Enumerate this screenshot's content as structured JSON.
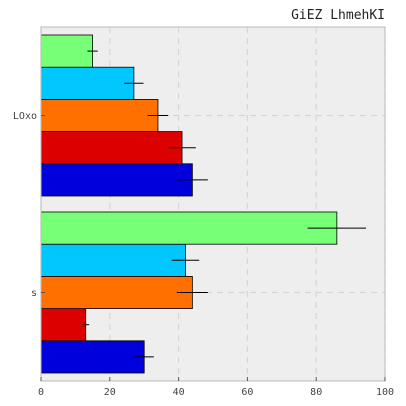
{
  "chart_data": {
    "type": "bar",
    "orientation": "horizontal",
    "title": "GiEZ LhmehKI",
    "xlabel": "",
    "ylabel": "",
    "xlim": [
      0,
      100
    ],
    "x_ticks": [
      "0",
      "20",
      "40",
      "60",
      "80",
      "100"
    ],
    "categories": [
      "LOxo",
      "s"
    ],
    "grid": true,
    "legend": "none",
    "series": [
      {
        "color": "#0000dd",
        "values": [
          44,
          30
        ],
        "errors": [
          4.5,
          2.8
        ]
      },
      {
        "color": "#dd0000",
        "values": [
          41,
          13
        ],
        "errors": [
          4,
          1
        ]
      },
      {
        "color": "#ff7000",
        "values": [
          34,
          44
        ],
        "errors": [
          3,
          4.5
        ]
      },
      {
        "color": "#00c8ff",
        "values": [
          27,
          42
        ],
        "errors": [
          2.8,
          4
        ]
      },
      {
        "color": "#78ff78",
        "values": [
          15,
          86
        ],
        "errors": [
          1.5,
          8.5
        ]
      }
    ],
    "colors": {
      "plot_bg": "#eeeeee",
      "grid": "#d6d6d6",
      "frame": "#bbbbbb",
      "bar_edge": "#000000"
    }
  }
}
